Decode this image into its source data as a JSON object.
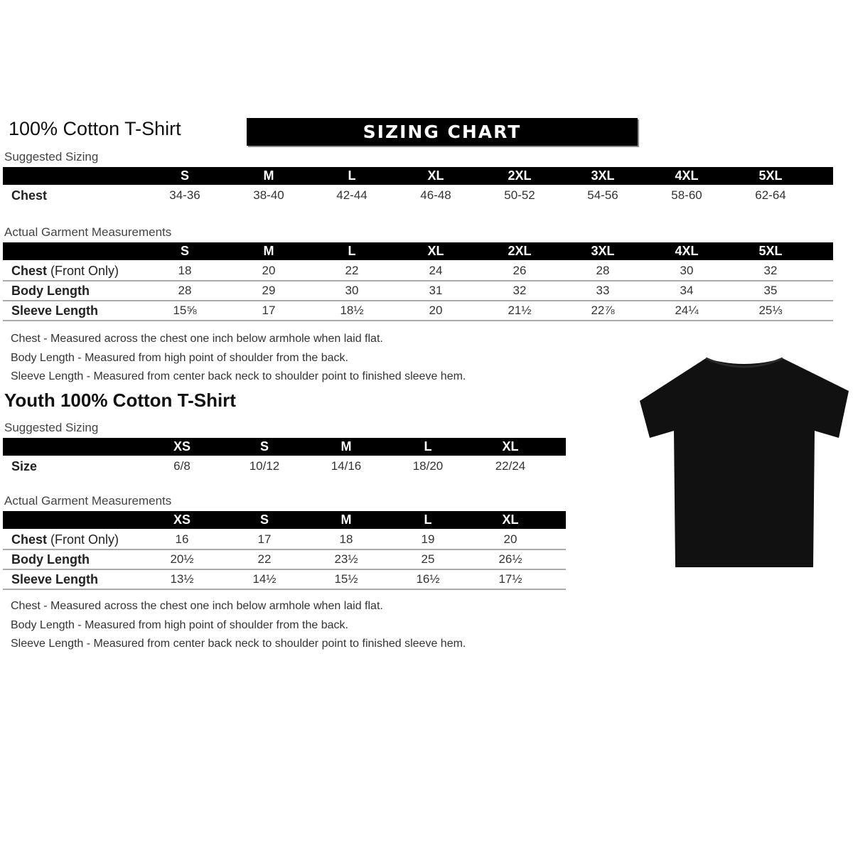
{
  "adult": {
    "title": "100% Cotton T-Shirt",
    "banner": "SIZING CHART",
    "suggested_label": "Suggested Sizing",
    "sizes": [
      "S",
      "M",
      "L",
      "XL",
      "2XL",
      "3XL",
      "4XL",
      "5XL"
    ],
    "suggested_rows": [
      {
        "label": "Chest",
        "values": [
          "34-36",
          "38-40",
          "42-44",
          "46-48",
          "50-52",
          "54-56",
          "58-60",
          "62-64"
        ]
      }
    ],
    "actual_label": "Actual Garment Measurements",
    "actual_rows": [
      {
        "label": "Chest",
        "label_suffix": " (Front Only)",
        "values": [
          "18",
          "20",
          "22",
          "24",
          "26",
          "28",
          "30",
          "32"
        ]
      },
      {
        "label": "Body Length",
        "label_suffix": "",
        "values": [
          "28",
          "29",
          "30",
          "31",
          "32",
          "33",
          "34",
          "35"
        ]
      },
      {
        "label": "Sleeve Length",
        "label_suffix": "",
        "values": [
          "15⅝",
          "17",
          "18½",
          "20",
          "21½",
          "22⅞",
          "24¼",
          "25⅓"
        ]
      }
    ],
    "notes": [
      "Chest - Measured across the chest one inch below armhole when laid flat.",
      "Body Length - Measured from high point of shoulder from the back.",
      "Sleeve Length - Measured from center back neck to shoulder point to finished sleeve hem."
    ]
  },
  "youth": {
    "title": "Youth 100% Cotton T-Shirt",
    "suggested_label": "Suggested Sizing",
    "sizes": [
      "XS",
      "S",
      "M",
      "L",
      "XL"
    ],
    "suggested_rows": [
      {
        "label": "Size",
        "values": [
          "6/8",
          "10/12",
          "14/16",
          "18/20",
          "22/24"
        ]
      }
    ],
    "actual_label": "Actual Garment Measurements",
    "actual_rows": [
      {
        "label": "Chest",
        "label_suffix": " (Front Only)",
        "values": [
          "16",
          "17",
          "18",
          "19",
          "20"
        ]
      },
      {
        "label": "Body Length",
        "label_suffix": "",
        "values": [
          "20½",
          "22",
          "23½",
          "25",
          "26½"
        ]
      },
      {
        "label": "Sleeve Length",
        "label_suffix": "",
        "values": [
          "13½",
          "14½",
          "15½",
          "16½",
          "17½"
        ]
      }
    ],
    "notes": [
      "Chest - Measured across the chest one inch below armhole when laid flat.",
      "Body Length - Measured from high point of shoulder from the back.",
      "Sleeve Length - Measured from center back neck to shoulder point to finished sleeve hem."
    ]
  },
  "image": {
    "icon": "black-tshirt-icon",
    "color": "#111111"
  }
}
